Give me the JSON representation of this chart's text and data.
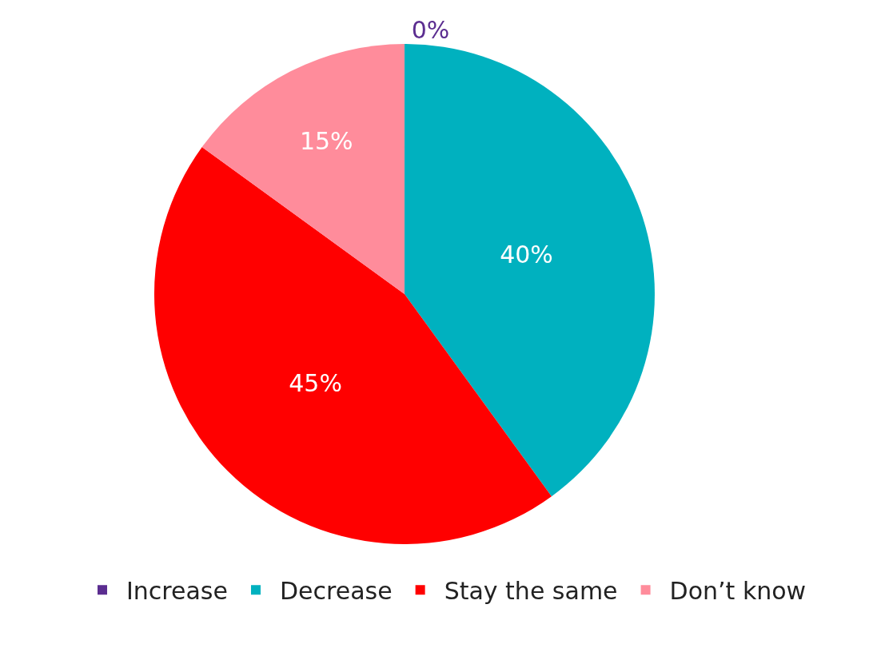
{
  "chart_data": {
    "type": "pie",
    "categories": [
      "Increase",
      "Decrease",
      "Stay the same",
      "Don’t know"
    ],
    "values": [
      0,
      40,
      45,
      15
    ],
    "value_labels": [
      "0%",
      "40%",
      "45%",
      "15%"
    ],
    "colors": [
      "#5b2d90",
      "#00b1bf",
      "#ff0000",
      "#ff8c9b"
    ],
    "legend": "bottom"
  }
}
